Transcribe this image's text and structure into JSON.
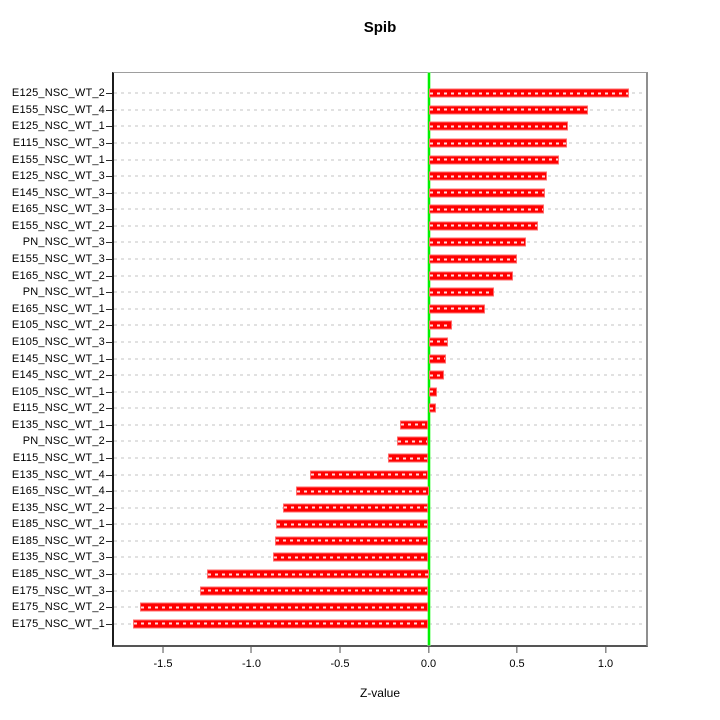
{
  "chart_data": {
    "type": "bar",
    "orientation": "horizontal",
    "title": "Spib",
    "xlabel": "Z-value",
    "grid": true,
    "bar_color": "#ff0000",
    "zero_line_color": "#00f000",
    "gridline_color": "#e1e1e1",
    "xlim": [
      -1.78,
      1.24
    ],
    "xticks": [
      -1.5,
      -1.0,
      -0.5,
      0.0,
      0.5,
      1.0
    ],
    "categories": [
      "E125_NSC_WT_2",
      "E155_NSC_WT_4",
      "E125_NSC_WT_1",
      "E115_NSC_WT_3",
      "E155_NSC_WT_1",
      "E125_NSC_WT_3",
      "E145_NSC_WT_3",
      "E165_NSC_WT_3",
      "E155_NSC_WT_2",
      "PN_NSC_WT_3",
      "E155_NSC_WT_3",
      "E165_NSC_WT_2",
      "PN_NSC_WT_1",
      "E165_NSC_WT_1",
      "E105_NSC_WT_2",
      "E105_NSC_WT_3",
      "E145_NSC_WT_1",
      "E145_NSC_WT_2",
      "E105_NSC_WT_1",
      "E115_NSC_WT_2",
      "E135_NSC_WT_1",
      "PN_NSC_WT_2",
      "E115_NSC_WT_1",
      "E135_NSC_WT_4",
      "E165_NSC_WT_4",
      "E135_NSC_WT_2",
      "E185_NSC_WT_1",
      "E185_NSC_WT_2",
      "E135_NSC_WT_3",
      "E185_NSC_WT_3",
      "E175_NSC_WT_3",
      "E175_NSC_WT_2",
      "E175_NSC_WT_1"
    ],
    "values": [
      1.13,
      0.9,
      0.79,
      0.78,
      0.74,
      0.67,
      0.66,
      0.65,
      0.62,
      0.55,
      0.5,
      0.48,
      0.37,
      0.32,
      0.13,
      0.11,
      0.1,
      0.09,
      0.05,
      0.04,
      -0.16,
      -0.18,
      -0.23,
      -0.67,
      -0.75,
      -0.82,
      -0.86,
      -0.87,
      -0.88,
      -1.25,
      -1.29,
      -1.63,
      -1.67
    ]
  }
}
